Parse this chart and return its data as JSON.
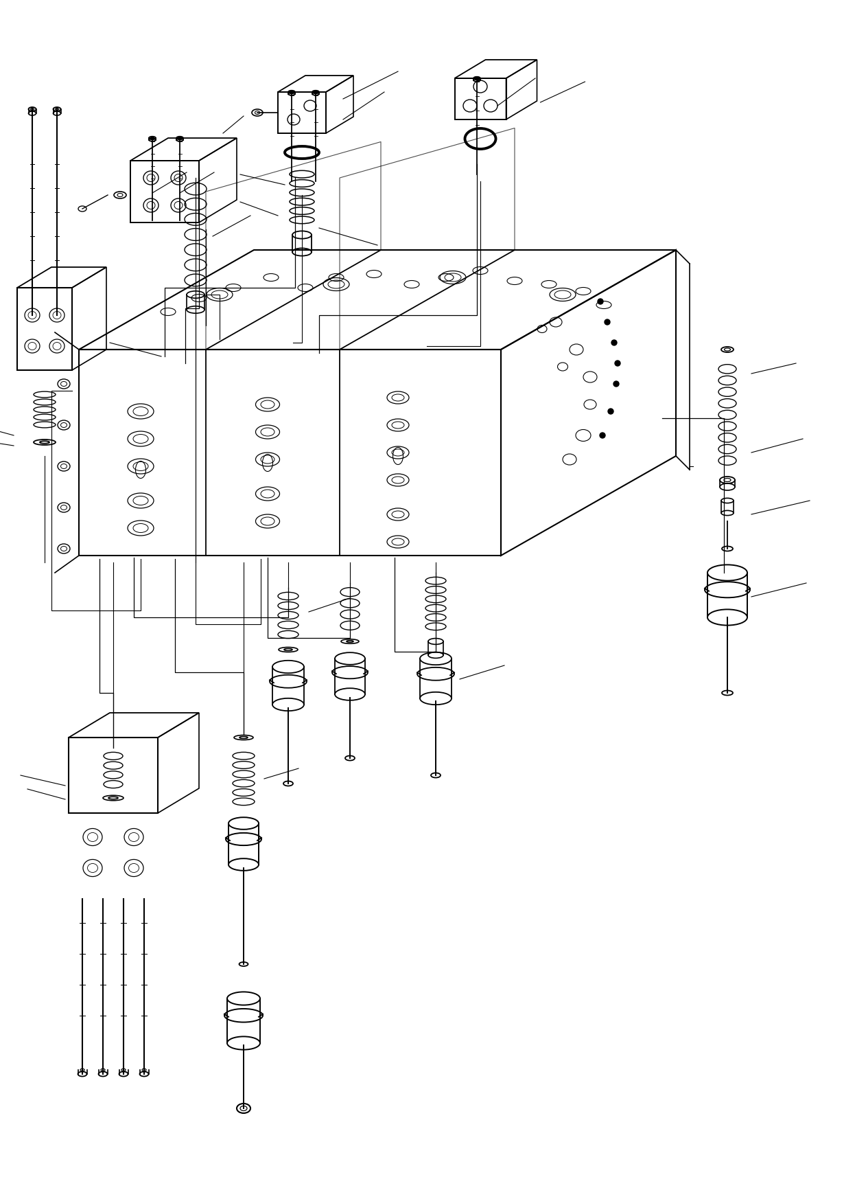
{
  "bg": "#ffffff",
  "lc": "#000000",
  "lw_main": 1.4,
  "lw_thin": 0.8,
  "lw_thick": 2.0,
  "fig_w": 12.46,
  "fig_h": 17.31,
  "dpi": 100
}
